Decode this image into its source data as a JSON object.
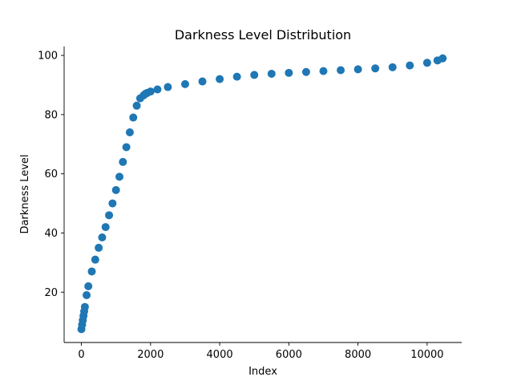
{
  "chart_data": {
    "type": "scatter",
    "title": "Darkness Level Distribution",
    "xlabel": "Index",
    "ylabel": "Darkness Level",
    "xlim": [
      -500,
      11000
    ],
    "ylim": [
      3,
      103
    ],
    "x_ticks": [
      0,
      2000,
      4000,
      6000,
      8000,
      10000
    ],
    "x_tick_labels": [
      "0",
      "2000",
      "4000",
      "6000",
      "8000",
      "10000"
    ],
    "y_ticks": [
      20,
      40,
      60,
      80,
      100
    ],
    "y_tick_labels": [
      "20",
      "40",
      "60",
      "80",
      "100"
    ],
    "grid": false,
    "color": "#1f77b4",
    "series": [
      {
        "x": [
          0,
          20,
          40,
          60,
          80,
          100,
          150,
          200,
          300,
          400,
          500,
          600,
          700,
          800,
          900,
          1000,
          1100,
          1200,
          1300,
          1400,
          1500,
          1600,
          1700,
          1800,
          1850,
          1900,
          2000,
          2200,
          2500,
          3000,
          3500,
          4000,
          4500,
          5000,
          5500,
          6000,
          6500,
          7000,
          7500,
          8000,
          8500,
          9000,
          9500,
          10000,
          10300,
          10450
        ],
        "y": [
          7.5,
          9,
          10.5,
          12,
          13.5,
          15,
          19,
          22,
          27,
          31,
          35,
          38.5,
          42,
          46,
          50,
          54.5,
          59,
          64,
          69,
          74,
          79,
          83,
          85.5,
          86.5,
          87,
          87.3,
          87.8,
          88.5,
          89.3,
          90.3,
          91.2,
          92,
          92.8,
          93.4,
          93.8,
          94.1,
          94.4,
          94.7,
          95.0,
          95.3,
          95.6,
          96.0,
          96.6,
          97.5,
          98.3,
          99
        ]
      }
    ]
  }
}
